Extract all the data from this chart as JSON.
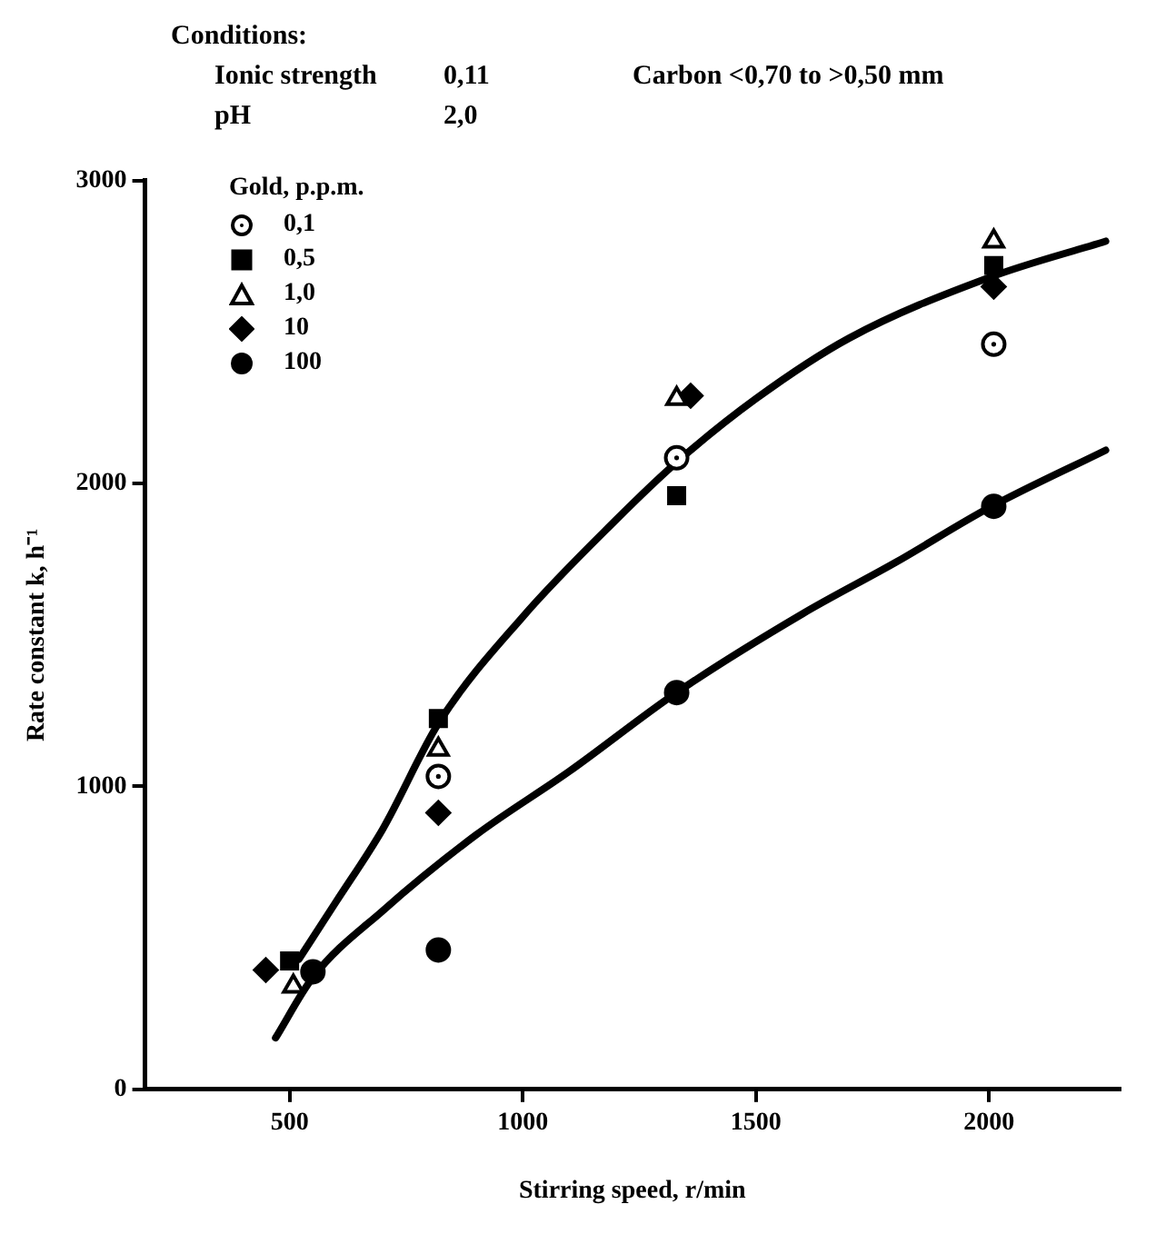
{
  "chart_data": {
    "type": "scatter",
    "xlabel": "Stirring speed, r/min",
    "ylabel": "Rate constant k, h⁻¹",
    "legend_title": "Gold, p.p.m.",
    "annotations": [
      "Conditions:",
      "Ionic strength",
      "0,11",
      "pH",
      "2,0",
      "Carbon <0,70 to >0,50 mm"
    ],
    "xlim": [
      190,
      2280
    ],
    "xticks": [
      500,
      1000,
      1500,
      2000
    ],
    "ylim": [
      0,
      3000
    ],
    "yticks": [
      0,
      1000,
      2000,
      3000
    ],
    "grid": false,
    "legend": "top left",
    "series": [
      {
        "name": "0,1",
        "color": "#000000",
        "marker": "circle",
        "x": [
          819,
          1330,
          2010
        ],
        "values": [
          1033,
          2085,
          2460
        ]
      },
      {
        "name": "0,5",
        "color": "#000000",
        "marker": "square",
        "x": [
          500,
          819,
          1330,
          2010
        ],
        "values": [
          424,
          1224,
          1960,
          2720
        ]
      },
      {
        "name": "1,0",
        "color": "#000000",
        "marker": "triangle",
        "x": [
          508,
          819,
          1330,
          2010
        ],
        "values": [
          340,
          1122,
          2280,
          2800
        ]
      },
      {
        "name": "10",
        "color": "#000000",
        "marker": "diamond",
        "x": [
          449,
          819,
          1360,
          2010
        ],
        "values": [
          394,
          913,
          2290,
          2650
        ]
      },
      {
        "name": "100",
        "color": "#000000",
        "marker": "circle",
        "x": [
          550,
          819,
          1330,
          2010
        ],
        "values": [
          388,
          460,
          1310,
          1925
        ]
      },
      {
        "type": "line",
        "color": "#000000",
        "marker": "none",
        "x": [
          520,
          600,
          700,
          820,
          1000,
          1200,
          1330,
          1500,
          1700,
          2000,
          2250
        ],
        "values": [
          430,
          620,
          860,
          1210,
          1560,
          1880,
          2070,
          2280,
          2480,
          2680,
          2800
        ]
      },
      {
        "type": "line",
        "color": "#000000",
        "marker": "none",
        "x": [
          470,
          550,
          700,
          900,
          1100,
          1330,
          1600,
          1800,
          2000,
          2250
        ],
        "values": [
          170,
          370,
          590,
          840,
          1050,
          1310,
          1570,
          1740,
          1920,
          2110
        ]
      }
    ]
  }
}
